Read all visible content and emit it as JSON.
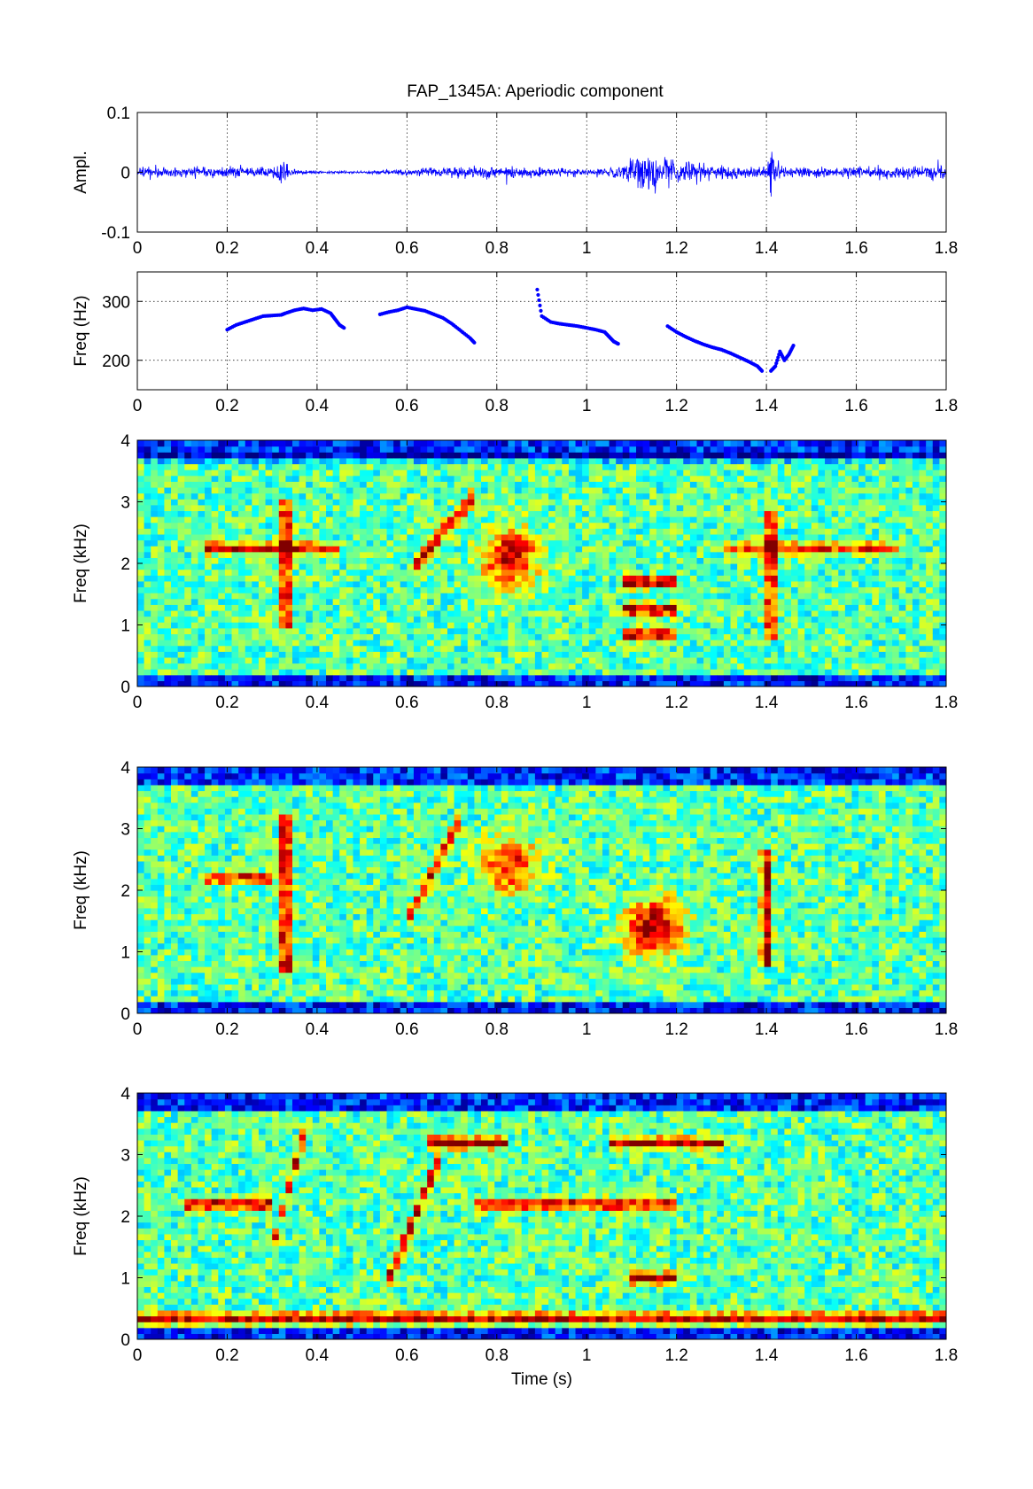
{
  "figure": {
    "title": "FAP_1345A: Aperiodic component"
  },
  "chart_data": [
    {
      "type": "line",
      "panel": "waveform",
      "title": "FAP_1345A: Aperiodic component",
      "xlabel": "",
      "ylabel": "Ampl.",
      "xlim": [
        0,
        1.8
      ],
      "ylim": [
        -0.1,
        0.1
      ],
      "xticks": [
        0,
        0.2,
        0.4,
        0.6,
        0.8,
        1,
        1.2,
        1.4,
        1.6,
        1.8
      ],
      "yticks": [
        -0.1,
        0,
        0.1
      ],
      "grid": true,
      "line_color": "#0000ff",
      "envelope": {
        "t": [
          0,
          0.1,
          0.2,
          0.3,
          0.32,
          0.34,
          0.36,
          0.4,
          0.5,
          0.6,
          0.7,
          0.8,
          0.9,
          1.0,
          1.05,
          1.1,
          1.15,
          1.2,
          1.25,
          1.3,
          1.35,
          1.4,
          1.41,
          1.42,
          1.45,
          1.5,
          1.6,
          1.7,
          1.8
        ],
        "amp": [
          0.012,
          0.012,
          0.014,
          0.01,
          0.03,
          0.012,
          0.006,
          0.004,
          0.003,
          0.008,
          0.012,
          0.016,
          0.012,
          0.008,
          0.01,
          0.028,
          0.045,
          0.03,
          0.02,
          0.016,
          0.014,
          0.013,
          0.06,
          0.02,
          0.014,
          0.012,
          0.014,
          0.016,
          0.018
        ]
      }
    },
    {
      "type": "scatter",
      "panel": "f0",
      "xlabel": "",
      "ylabel": "Freq (Hz)",
      "xlim": [
        0,
        1.8
      ],
      "ylim": [
        150,
        350
      ],
      "xticks": [
        0,
        0.2,
        0.4,
        0.6,
        0.8,
        1,
        1.2,
        1.4,
        1.6,
        1.8
      ],
      "yticks": [
        200,
        300
      ],
      "grid": true,
      "marker_color": "#0000ff",
      "segments": [
        {
          "x": [
            0.2,
            0.22,
            0.24,
            0.26,
            0.28,
            0.3,
            0.32,
            0.33,
            0.35,
            0.37,
            0.39,
            0.41,
            0.43,
            0.44,
            0.45,
            0.46
          ],
          "y": [
            252,
            260,
            265,
            270,
            275,
            276,
            277,
            280,
            285,
            288,
            285,
            287,
            280,
            270,
            260,
            255
          ]
        },
        {
          "x": [
            0.54,
            0.56,
            0.58,
            0.6,
            0.62,
            0.64,
            0.66,
            0.68,
            0.7,
            0.72,
            0.74,
            0.75
          ],
          "y": [
            278,
            282,
            285,
            290,
            287,
            284,
            278,
            272,
            262,
            250,
            238,
            230
          ]
        },
        {
          "x": [
            0.89,
            0.9,
            0.92,
            0.94,
            0.96,
            0.98,
            1.0,
            1.02,
            1.04,
            1.05,
            1.06,
            1.07
          ],
          "y": [
            320,
            275,
            265,
            262,
            260,
            258,
            255,
            252,
            248,
            240,
            232,
            228
          ]
        },
        {
          "x": [
            1.18,
            1.2,
            1.22,
            1.24,
            1.26,
            1.28,
            1.3,
            1.32,
            1.34,
            1.36,
            1.38,
            1.39
          ],
          "y": [
            258,
            248,
            240,
            233,
            227,
            222,
            218,
            212,
            205,
            198,
            190,
            182
          ]
        },
        {
          "x": [
            1.41,
            1.42,
            1.43,
            1.44,
            1.45,
            1.46
          ],
          "y": [
            182,
            190,
            215,
            200,
            210,
            225
          ]
        }
      ]
    },
    {
      "type": "heatmap",
      "panel": "spectrogram-1",
      "xlabel": "",
      "ylabel": "Freq (kHz)",
      "xlim": [
        0,
        1.8
      ],
      "ylim": [
        0,
        4
      ],
      "xticks": [
        0,
        0.2,
        0.4,
        0.6,
        0.8,
        1,
        1.2,
        1.4,
        1.6,
        1.8
      ],
      "yticks": [
        0,
        1,
        2,
        3,
        4
      ],
      "colormap": "jet",
      "features": [
        {
          "kind": "hline",
          "t0": 0.15,
          "t1": 0.45,
          "f": 2.25,
          "intensity": 0.85
        },
        {
          "kind": "hline",
          "t0": 1.3,
          "t1": 1.7,
          "f": 2.25,
          "intensity": 0.7
        },
        {
          "kind": "vline",
          "t": 0.33,
          "f0": 1.0,
          "f1": 3.0,
          "intensity": 0.9
        },
        {
          "kind": "vline",
          "t": 1.41,
          "f0": 0.8,
          "f1": 2.9,
          "intensity": 0.9
        },
        {
          "kind": "blob",
          "t": 0.83,
          "f": 2.1,
          "intensity": 0.9
        },
        {
          "kind": "hline",
          "t0": 1.08,
          "t1": 1.2,
          "f": 1.7,
          "intensity": 1.0
        },
        {
          "kind": "hline",
          "t0": 1.08,
          "t1": 1.2,
          "f": 1.25,
          "intensity": 1.0
        },
        {
          "kind": "hline",
          "t0": 1.08,
          "t1": 1.2,
          "f": 0.85,
          "intensity": 0.95
        },
        {
          "kind": "diag",
          "t0": 0.62,
          "f0": 2.0,
          "t1": 0.75,
          "f1": 3.1,
          "intensity": 0.8
        }
      ]
    },
    {
      "type": "heatmap",
      "panel": "spectrogram-2",
      "xlabel": "",
      "ylabel": "Freq (kHz)",
      "xlim": [
        0,
        1.8
      ],
      "ylim": [
        0,
        4
      ],
      "xticks": [
        0,
        0.2,
        0.4,
        0.6,
        0.8,
        1,
        1.2,
        1.4,
        1.6,
        1.8
      ],
      "yticks": [
        0,
        1,
        2,
        3,
        4
      ],
      "colormap": "jet",
      "features": [
        {
          "kind": "hline",
          "t0": 0.15,
          "t1": 0.3,
          "f": 2.2,
          "intensity": 0.8
        },
        {
          "kind": "vline",
          "t": 0.33,
          "f0": 0.7,
          "f1": 3.2,
          "intensity": 1.0
        },
        {
          "kind": "diag",
          "t0": 0.6,
          "f0": 1.5,
          "t1": 0.72,
          "f1": 3.2,
          "intensity": 0.85
        },
        {
          "kind": "blob",
          "t": 1.15,
          "f": 1.4,
          "intensity": 1.0
        },
        {
          "kind": "vline",
          "t": 1.4,
          "f0": 0.8,
          "f1": 2.7,
          "intensity": 0.85
        },
        {
          "kind": "blob",
          "t": 0.83,
          "f": 2.4,
          "intensity": 0.75
        }
      ]
    },
    {
      "type": "heatmap",
      "panel": "spectrogram-3",
      "xlabel": "Time (s)",
      "ylabel": "Freq (kHz)",
      "xlim": [
        0,
        1.8
      ],
      "ylim": [
        0,
        4
      ],
      "xticks": [
        0,
        0.2,
        0.4,
        0.6,
        0.8,
        1,
        1.2,
        1.4,
        1.6,
        1.8
      ],
      "yticks": [
        0,
        1,
        2,
        3,
        4
      ],
      "colormap": "jet",
      "features": [
        {
          "kind": "hline",
          "t0": 0.0,
          "t1": 1.8,
          "f": 0.35,
          "intensity": 0.9
        },
        {
          "kind": "hline",
          "t0": 0.1,
          "t1": 0.3,
          "f": 2.2,
          "intensity": 0.95
        },
        {
          "kind": "hline",
          "t0": 0.65,
          "t1": 0.82,
          "f": 3.2,
          "intensity": 1.0
        },
        {
          "kind": "hline",
          "t0": 1.05,
          "t1": 1.3,
          "f": 3.2,
          "intensity": 0.95
        },
        {
          "kind": "hline",
          "t0": 0.75,
          "t1": 1.2,
          "f": 2.2,
          "intensity": 0.85
        },
        {
          "kind": "hline",
          "t0": 1.1,
          "t1": 1.2,
          "f": 1.0,
          "intensity": 0.95
        },
        {
          "kind": "diag",
          "t0": 0.56,
          "f0": 1.0,
          "t1": 0.68,
          "f1": 3.1,
          "intensity": 0.95
        },
        {
          "kind": "diag",
          "t0": 0.3,
          "f0": 1.5,
          "t1": 0.37,
          "f1": 3.3,
          "intensity": 0.85
        }
      ]
    }
  ]
}
